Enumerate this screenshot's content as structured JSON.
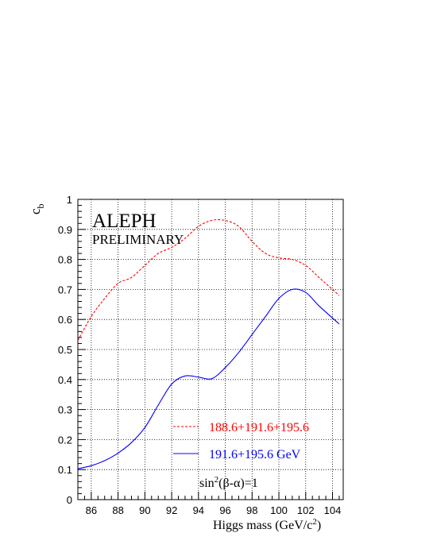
{
  "chart_data": {
    "type": "line",
    "title": "",
    "xlabel": "Higgs mass (GeV/c",
    "xlabel_sup": "2",
    "xlabel_end": ")",
    "ylabel": "c",
    "ylabel_sub": "b",
    "xlim": [
      85,
      104.8
    ],
    "ylim": [
      0,
      1
    ],
    "grid": true,
    "x_ticks": [
      86,
      88,
      90,
      92,
      94,
      96,
      98,
      100,
      102,
      104
    ],
    "y_ticks": [
      0,
      0.1,
      0.2,
      0.3,
      0.4,
      0.5,
      0.6,
      0.7,
      0.8,
      0.9,
      1
    ],
    "annotations": {
      "experiment": "ALEPH",
      "status": "PRELIMINARY",
      "condition_pre": "sin",
      "condition_sup": "2",
      "condition_post": "(β-α)=1"
    },
    "legend_position": "bottom-right",
    "series": [
      {
        "name": "188.6+191.6+195.6",
        "color": "#ff0000",
        "style": "dashed",
        "x": [
          85,
          86,
          87,
          88,
          89,
          90,
          91,
          92,
          93,
          94,
          95,
          96,
          97,
          98,
          99,
          100,
          101,
          102,
          103,
          104.5
        ],
        "y": [
          0.53,
          0.61,
          0.67,
          0.72,
          0.74,
          0.78,
          0.82,
          0.84,
          0.87,
          0.91,
          0.93,
          0.93,
          0.91,
          0.86,
          0.82,
          0.805,
          0.8,
          0.78,
          0.74,
          0.68
        ]
      },
      {
        "name": "191.6+195.6 GeV",
        "color": "#0000ff",
        "style": "solid",
        "x": [
          85,
          86,
          87,
          88,
          89,
          90,
          91,
          92,
          93,
          94,
          95,
          96,
          97,
          98,
          99,
          100,
          101,
          102,
          103,
          104.5
        ],
        "y": [
          0.103,
          0.113,
          0.13,
          0.155,
          0.19,
          0.24,
          0.315,
          0.385,
          0.412,
          0.408,
          0.403,
          0.44,
          0.49,
          0.55,
          0.61,
          0.67,
          0.7,
          0.69,
          0.645,
          0.585
        ]
      }
    ]
  }
}
